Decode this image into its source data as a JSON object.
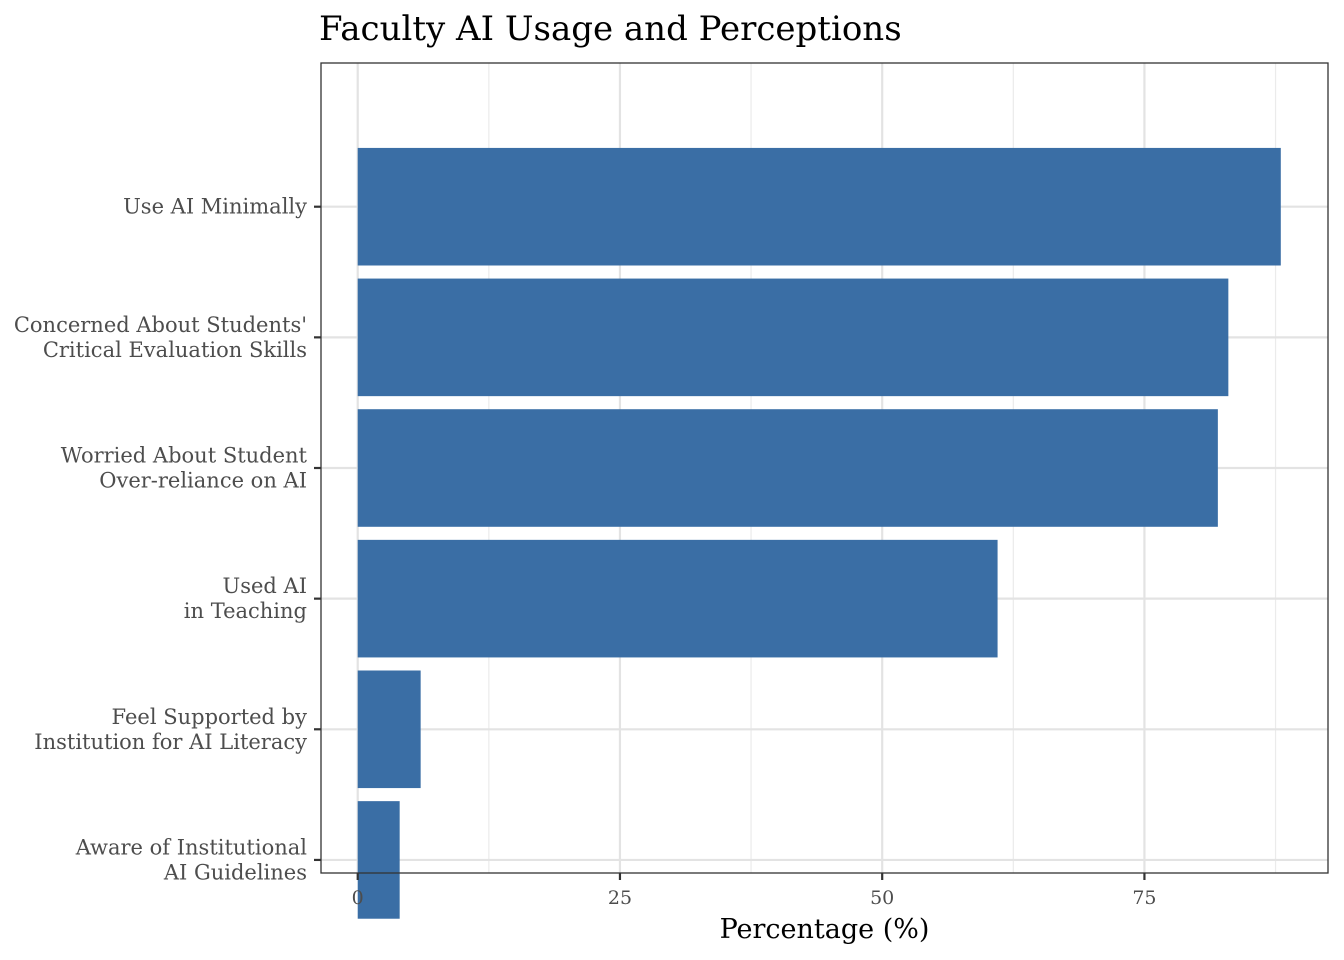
{
  "chart_data": {
    "type": "bar",
    "orientation": "horizontal",
    "title": "Faculty AI Usage and Perceptions",
    "xlabel": "Percentage (%)",
    "ylabel": "",
    "xlim": [
      -3.5,
      92.5
    ],
    "xticks": [
      0,
      25,
      50,
      75
    ],
    "bar_color": "#3a6ea5",
    "categories": [
      [
        "Use AI Minimally"
      ],
      [
        "Concerned About Students'",
        "Critical Evaluation Skills"
      ],
      [
        "Worried About Student",
        "Over-reliance on AI"
      ],
      [
        "Used AI",
        "in Teaching"
      ],
      [
        "Feel Supported by",
        "Institution for AI Literacy"
      ],
      [
        "Aware of Institutional",
        "AI Guidelines"
      ]
    ],
    "values": [
      88,
      83,
      82,
      61,
      6,
      4
    ]
  }
}
